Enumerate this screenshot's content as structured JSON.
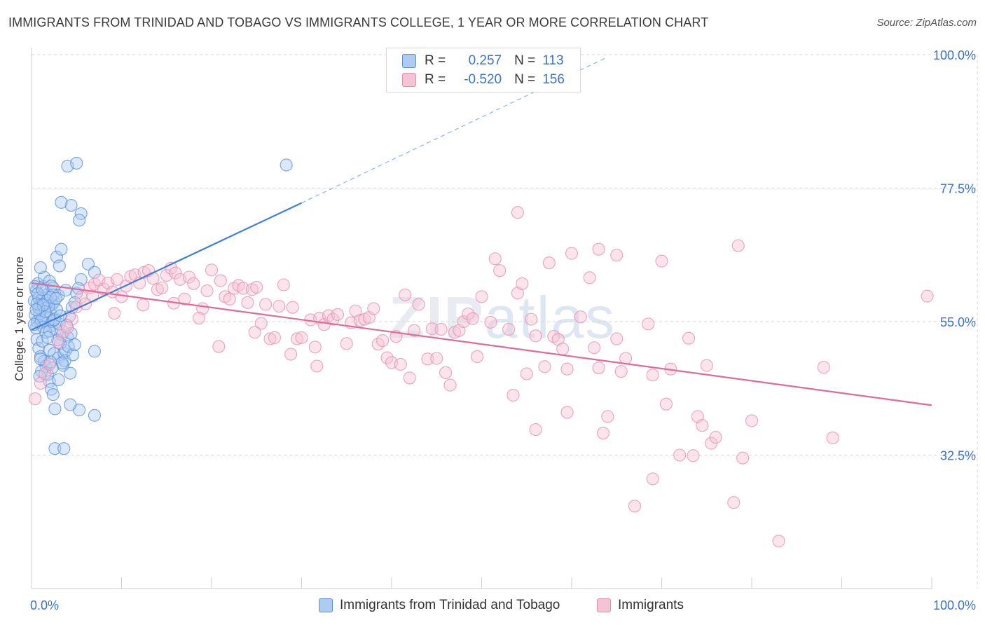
{
  "title": "IMMIGRANTS FROM TRINIDAD AND TOBAGO VS IMMIGRANTS COLLEGE, 1 YEAR OR MORE CORRELATION CHART",
  "source": "Source: ZipAtlas.com",
  "watermark": {
    "bold": "ZIP",
    "light": "atlas"
  },
  "legend": {
    "rows": [
      {
        "r_label": "R =",
        "r_value": "0.257",
        "n_label": "N =",
        "n_value": "113",
        "color": "#5b8fd9",
        "fill": "#aecbf2"
      },
      {
        "r_label": "R =",
        "r_value": "-0.520",
        "n_label": "N =",
        "n_value": "156",
        "color": "#e58fb0",
        "fill": "#f6c3d4"
      }
    ]
  },
  "bottom_legend": [
    {
      "label": "Immigrants from Trinidad and Tobago",
      "color": "#5b8fd9",
      "fill": "#aecbf2"
    },
    {
      "label": "Immigrants",
      "color": "#e58fb0",
      "fill": "#f6c3d4"
    }
  ],
  "chart_data": {
    "type": "scatter",
    "title": "IMMIGRANTS FROM TRINIDAD AND TOBAGO VS IMMIGRANTS COLLEGE, 1 YEAR OR MORE CORRELATION CHART",
    "xlabel": "",
    "ylabel": "College, 1 year or more",
    "xlim": [
      0,
      100
    ],
    "ylim": [
      10,
      100
    ],
    "x_tick_labels": [
      {
        "value": 0,
        "label": "0.0%"
      },
      {
        "value": 100,
        "label": "100.0%"
      }
    ],
    "y_tick_labels": [
      {
        "value": 32.5,
        "label": "32.5%"
      },
      {
        "value": 55.0,
        "label": "55.0%"
      },
      {
        "value": 77.5,
        "label": "77.5%"
      },
      {
        "value": 100.0,
        "label": "100.0%"
      }
    ],
    "grid": true,
    "legend_position": "top-center",
    "series": [
      {
        "name": "Immigrants from Trinidad and Tobago",
        "color": "#3f7fd6",
        "points": [
          [
            0.3,
            58.5
          ],
          [
            0.5,
            60.2
          ],
          [
            0.4,
            56.1
          ],
          [
            0.6,
            55.0
          ],
          [
            0.8,
            59.0
          ],
          [
            0.7,
            61.4
          ],
          [
            0.9,
            57.7
          ],
          [
            1.0,
            54.8
          ],
          [
            1.1,
            56.9
          ],
          [
            1.2,
            58.8
          ],
          [
            0.5,
            53.9
          ],
          [
            0.6,
            52.0
          ],
          [
            0.8,
            50.5
          ],
          [
            1.0,
            49.1
          ],
          [
            1.3,
            60.9
          ],
          [
            1.4,
            62.5
          ],
          [
            1.5,
            57.2
          ],
          [
            1.6,
            55.8
          ],
          [
            1.7,
            58.1
          ],
          [
            1.8,
            59.6
          ],
          [
            2.0,
            61.8
          ],
          [
            2.1,
            56.4
          ],
          [
            2.2,
            54.3
          ],
          [
            2.3,
            57.9
          ],
          [
            2.4,
            60.7
          ],
          [
            2.5,
            58.3
          ],
          [
            2.6,
            55.5
          ],
          [
            2.7,
            53.6
          ],
          [
            2.8,
            57.0
          ],
          [
            3.0,
            59.4
          ],
          [
            1.2,
            51.7
          ],
          [
            1.4,
            48.3
          ],
          [
            1.6,
            47.5
          ],
          [
            1.8,
            46.1
          ],
          [
            2.0,
            44.9
          ],
          [
            2.2,
            43.6
          ],
          [
            2.4,
            42.7
          ],
          [
            2.6,
            40.3
          ],
          [
            2.0,
            50.2
          ],
          [
            2.5,
            49.6
          ],
          [
            3.0,
            48.9
          ],
          [
            3.2,
            51.3
          ],
          [
            3.4,
            52.8
          ],
          [
            3.6,
            49.7
          ],
          [
            3.8,
            50.1
          ],
          [
            4.0,
            52.4
          ],
          [
            4.2,
            55.9
          ],
          [
            4.4,
            53.0
          ],
          [
            3.5,
            47.6
          ],
          [
            3.7,
            48.4
          ],
          [
            1.0,
            64.1
          ],
          [
            2.2,
            61.0
          ],
          [
            2.4,
            59.5
          ],
          [
            2.8,
            65.9
          ],
          [
            3.3,
            67.2
          ],
          [
            3.1,
            64.4
          ],
          [
            3.8,
            60.3
          ],
          [
            4.5,
            57.4
          ],
          [
            5.0,
            59.8
          ],
          [
            5.5,
            62.1
          ],
          [
            6.3,
            64.7
          ],
          [
            7.0,
            63.3
          ],
          [
            7.0,
            50.0
          ],
          [
            7.0,
            39.2
          ],
          [
            5.3,
            40.1
          ],
          [
            4.3,
            41.0
          ],
          [
            2.6,
            33.6
          ],
          [
            3.6,
            33.6
          ],
          [
            4.0,
            81.2
          ],
          [
            4.4,
            74.6
          ],
          [
            5.5,
            73.2
          ],
          [
            5.3,
            72.1
          ],
          [
            3.3,
            75.1
          ],
          [
            5.0,
            81.7
          ],
          [
            1.7,
            58.6
          ],
          [
            0.9,
            56.3
          ],
          [
            1.1,
            55.2
          ],
          [
            1.3,
            54.1
          ],
          [
            0.4,
            60.9
          ],
          [
            0.7,
            59.7
          ],
          [
            1.9,
            57.6
          ],
          [
            2.1,
            59.1
          ],
          [
            2.3,
            55.0
          ],
          [
            1.5,
            56.7
          ],
          [
            3.1,
            54.6
          ],
          [
            2.9,
            51.9
          ],
          [
            1.6,
            53.2
          ],
          [
            0.8,
            57.3
          ],
          [
            0.6,
            58.0
          ],
          [
            1.2,
            60.4
          ],
          [
            2.7,
            58.9
          ],
          [
            3.9,
            54.4
          ],
          [
            4.1,
            50.8
          ],
          [
            4.6,
            49.4
          ],
          [
            4.8,
            51.1
          ],
          [
            3.4,
            48.0
          ],
          [
            2.3,
            47.2
          ],
          [
            1.1,
            46.6
          ],
          [
            0.9,
            45.8
          ],
          [
            4.3,
            46.3
          ],
          [
            2.5,
            55.3
          ],
          [
            1.3,
            57.8
          ],
          [
            0.5,
            57.0
          ],
          [
            0.3,
            54.5
          ],
          [
            2.0,
            53.4
          ],
          [
            1.8,
            52.3
          ],
          [
            3.2,
            56.0
          ],
          [
            4.8,
            58.2
          ],
          [
            5.2,
            60.6
          ],
          [
            28.3,
            81.4
          ],
          [
            1.0,
            48.7
          ],
          [
            2.1,
            48.2
          ],
          [
            3.0,
            45.2
          ]
        ],
        "trend": {
          "x": [
            0,
            30
          ],
          "y": [
            53.6,
            75.0
          ]
        },
        "trend_extension": {
          "x": [
            30,
            64
          ],
          "y": [
            75.0,
            99.6
          ]
        }
      },
      {
        "name": "Immigrants",
        "color": "#e06a98",
        "points": [
          [
            0.4,
            42.0
          ],
          [
            1.0,
            44.6
          ],
          [
            1.5,
            46.2
          ],
          [
            2.0,
            47.8
          ],
          [
            3.5,
            53.3
          ],
          [
            4.5,
            55.4
          ],
          [
            5.0,
            57.5
          ],
          [
            5.5,
            59.1
          ],
          [
            6.0,
            58.0
          ],
          [
            6.5,
            60.7
          ],
          [
            7.0,
            61.3
          ],
          [
            7.5,
            62.0
          ],
          [
            8.0,
            60.5
          ],
          [
            8.5,
            61.5
          ],
          [
            9.0,
            60.0
          ],
          [
            9.5,
            62.1
          ],
          [
            10.0,
            59.2
          ],
          [
            10.5,
            61.0
          ],
          [
            11.0,
            62.6
          ],
          [
            11.5,
            62.9
          ],
          [
            12.0,
            61.5
          ],
          [
            12.5,
            63.3
          ],
          [
            13.0,
            63.6
          ],
          [
            13.5,
            62.3
          ],
          [
            14.0,
            60.4
          ],
          [
            14.5,
            60.7
          ],
          [
            15.0,
            62.8
          ],
          [
            15.5,
            64.0
          ],
          [
            16.0,
            63.2
          ],
          [
            16.5,
            62.1
          ],
          [
            17.0,
            58.8
          ],
          [
            17.5,
            62.5
          ],
          [
            18.0,
            61.4
          ],
          [
            19.0,
            57.2
          ],
          [
            19.5,
            60.2
          ],
          [
            20.0,
            63.7
          ],
          [
            21.0,
            61.9
          ],
          [
            21.5,
            59.2
          ],
          [
            22.0,
            58.8
          ],
          [
            22.5,
            60.6
          ],
          [
            23.0,
            61.1
          ],
          [
            23.5,
            60.6
          ],
          [
            24.0,
            58.2
          ],
          [
            24.5,
            60.4
          ],
          [
            25.0,
            60.8
          ],
          [
            25.5,
            54.7
          ],
          [
            26.0,
            57.9
          ],
          [
            26.5,
            52.1
          ],
          [
            27.0,
            52.3
          ],
          [
            27.5,
            57.6
          ],
          [
            28.0,
            61.2
          ],
          [
            29.0,
            57.4
          ],
          [
            29.5,
            52.1
          ],
          [
            30.0,
            52.3
          ],
          [
            31.0,
            55.3
          ],
          [
            31.5,
            50.7
          ],
          [
            32.0,
            55.6
          ],
          [
            32.5,
            54.5
          ],
          [
            33.0,
            56.0
          ],
          [
            33.5,
            55.4
          ],
          [
            34.0,
            56.2
          ],
          [
            35.0,
            51.3
          ],
          [
            35.5,
            54.8
          ],
          [
            36.0,
            56.8
          ],
          [
            36.5,
            55.2
          ],
          [
            37.0,
            55.4
          ],
          [
            37.5,
            55.7
          ],
          [
            38.0,
            57.2
          ],
          [
            38.5,
            51.2
          ],
          [
            39.0,
            51.8
          ],
          [
            39.5,
            48.9
          ],
          [
            40.0,
            48.1
          ],
          [
            40.5,
            52.5
          ],
          [
            41.0,
            47.8
          ],
          [
            41.5,
            59.5
          ],
          [
            42.0,
            45.5
          ],
          [
            42.5,
            53.5
          ],
          [
            43.0,
            57.9
          ],
          [
            44.0,
            48.7
          ],
          [
            44.5,
            53.8
          ],
          [
            45.0,
            48.8
          ],
          [
            45.5,
            53.7
          ],
          [
            46.0,
            46.4
          ],
          [
            46.5,
            44.3
          ],
          [
            47.0,
            53.2
          ],
          [
            47.5,
            53.5
          ],
          [
            48.0,
            55.0
          ],
          [
            48.5,
            56.3
          ],
          [
            49.0,
            55.5
          ],
          [
            49.5,
            49.1
          ],
          [
            50.0,
            59.2
          ],
          [
            51.0,
            54.9
          ],
          [
            51.5,
            65.6
          ],
          [
            52.0,
            63.6
          ],
          [
            53.0,
            53.7
          ],
          [
            53.5,
            42.6
          ],
          [
            54.0,
            59.8
          ],
          [
            54.5,
            61.4
          ],
          [
            54.0,
            73.4
          ],
          [
            55.0,
            46.2
          ],
          [
            55.5,
            55.4
          ],
          [
            56.0,
            52.6
          ],
          [
            56.0,
            36.8
          ],
          [
            57.0,
            47.4
          ],
          [
            57.5,
            64.9
          ],
          [
            58.0,
            52.5
          ],
          [
            58.5,
            52.0
          ],
          [
            59.0,
            50.4
          ],
          [
            59.5,
            39.7
          ],
          [
            59.5,
            47.0
          ],
          [
            60.0,
            66.5
          ],
          [
            61.0,
            55.8
          ],
          [
            62.0,
            62.4
          ],
          [
            62.5,
            50.6
          ],
          [
            63.0,
            47.2
          ],
          [
            63.0,
            67.2
          ],
          [
            63.5,
            36.2
          ],
          [
            64.0,
            39.0
          ],
          [
            65.0,
            52.1
          ],
          [
            65.0,
            66.2
          ],
          [
            65.5,
            46.6
          ],
          [
            66.0,
            48.8
          ],
          [
            67.0,
            23.9
          ],
          [
            68.5,
            54.6
          ],
          [
            69.0,
            46.0
          ],
          [
            69.0,
            28.5
          ],
          [
            70.0,
            65.2
          ],
          [
            70.5,
            41.1
          ],
          [
            71.0,
            47.0
          ],
          [
            72.0,
            32.5
          ],
          [
            73.0,
            52.2
          ],
          [
            73.5,
            32.4
          ],
          [
            74.0,
            39.0
          ],
          [
            74.5,
            37.5
          ],
          [
            75.0,
            47.6
          ],
          [
            75.5,
            34.5
          ],
          [
            76.0,
            35.5
          ],
          [
            78.0,
            24.5
          ],
          [
            79.0,
            32.0
          ],
          [
            78.5,
            67.8
          ],
          [
            80.0,
            38.3
          ],
          [
            83.0,
            18.0
          ],
          [
            88.0,
            47.3
          ],
          [
            89.0,
            35.4
          ],
          [
            99.5,
            59.3
          ],
          [
            3.0,
            51.5
          ],
          [
            4.0,
            54.0
          ],
          [
            6.8,
            59.3
          ],
          [
            9.2,
            56.4
          ],
          [
            12.4,
            57.8
          ],
          [
            15.8,
            58.1
          ],
          [
            18.6,
            55.6
          ],
          [
            20.8,
            50.8
          ],
          [
            24.8,
            53.2
          ],
          [
            28.8,
            49.5
          ],
          [
            31.7,
            47.5
          ]
        ],
        "trend": {
          "x": [
            0,
            100
          ],
          "y": [
            61.5,
            40.9
          ]
        }
      }
    ]
  }
}
